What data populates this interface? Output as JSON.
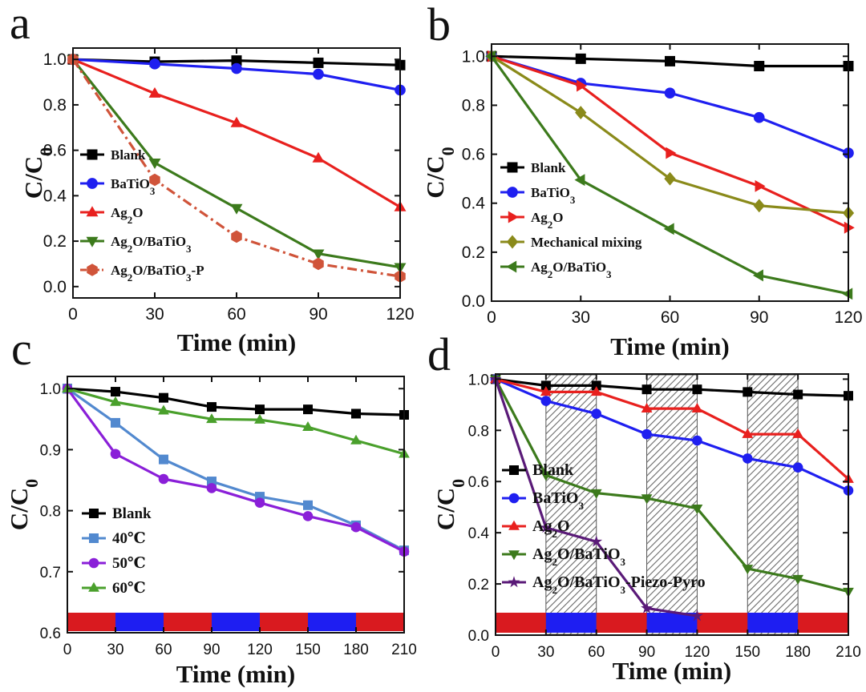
{
  "chart_data": [
    {
      "panel": "a",
      "type": "line",
      "xlabel": "Time (min)",
      "ylabel": "C/C0",
      "xlim": [
        0,
        120
      ],
      "ylim": [
        -0.05,
        1.05
      ],
      "xticks": [
        "0",
        "30",
        "60",
        "90",
        "120"
      ],
      "yticks": [
        "0.0",
        "0.2",
        "0.4",
        "0.6",
        "0.8",
        "1.0"
      ],
      "x": [
        0,
        30,
        60,
        90,
        120
      ],
      "series": [
        {
          "name": "Blank",
          "legend": [
            "Blank",
            ""
          ],
          "color": "#000000",
          "marker": "square",
          "values": [
            1.0,
            0.99,
            0.995,
            0.985,
            0.975
          ]
        },
        {
          "name": "BaTiO3",
          "legend": [
            "BaTiO",
            "3"
          ],
          "color": "#1f1ff0",
          "marker": "circle",
          "values": [
            1.0,
            0.98,
            0.96,
            0.935,
            0.865
          ]
        },
        {
          "name": "Ag2O",
          "legend": [
            "Ag",
            "2",
            "O"
          ],
          "color": "#e8201e",
          "marker": "triangle-up",
          "values": [
            1.0,
            0.85,
            0.72,
            0.565,
            0.35
          ]
        },
        {
          "name": "Ag2O/BaTiO3",
          "legend": [
            "Ag",
            "2",
            "O/BaTiO",
            "3"
          ],
          "color": "#3c7a1c",
          "marker": "triangle-down",
          "values": [
            1.0,
            0.545,
            0.345,
            0.145,
            0.085
          ]
        },
        {
          "name": "Ag2O/BaTiO3-P",
          "legend": [
            "Ag",
            "2",
            "O/BaTiO",
            "3",
            "-P"
          ],
          "color": "#d0543a",
          "marker": "hexagon",
          "dash": "dashdot",
          "values": [
            1.0,
            0.47,
            0.22,
            0.1,
            0.045
          ]
        }
      ]
    },
    {
      "panel": "b",
      "type": "line",
      "xlabel": "Time (min)",
      "ylabel": "C/C0",
      "xlim": [
        0,
        120
      ],
      "ylim": [
        0,
        1.05
      ],
      "xticks": [
        "0",
        "30",
        "60",
        "90",
        "120"
      ],
      "yticks": [
        "0.0",
        "0.2",
        "0.4",
        "0.6",
        "0.8",
        "1.0"
      ],
      "x": [
        0,
        30,
        60,
        90,
        120
      ],
      "series": [
        {
          "name": "Blank",
          "legend": [
            "Blank",
            ""
          ],
          "color": "#000000",
          "marker": "square",
          "values": [
            1.0,
            0.99,
            0.98,
            0.96,
            0.96
          ]
        },
        {
          "name": "BaTiO3",
          "legend": [
            "BaTiO",
            "3"
          ],
          "color": "#1f1ff0",
          "marker": "circle",
          "values": [
            1.0,
            0.89,
            0.85,
            0.75,
            0.605
          ]
        },
        {
          "name": "Ag2O",
          "legend": [
            "Ag",
            "2",
            "O"
          ],
          "color": "#e8201e",
          "marker": "triangle-right",
          "values": [
            1.0,
            0.88,
            0.605,
            0.47,
            0.3
          ]
        },
        {
          "name": "Mechanical mixing",
          "legend": [
            "Mechanical mixing",
            ""
          ],
          "color": "#8a8a1a",
          "marker": "diamond",
          "values": [
            1.0,
            0.77,
            0.5,
            0.39,
            0.36
          ]
        },
        {
          "name": "Ag2O/BaTiO3",
          "legend": [
            "Ag",
            "2",
            "O/BaTiO",
            "3"
          ],
          "color": "#3c7a1c",
          "marker": "triangle-left",
          "values": [
            1.0,
            0.495,
            0.295,
            0.105,
            0.03
          ]
        }
      ]
    },
    {
      "panel": "c",
      "type": "line",
      "xlabel": "Time (min)",
      "ylabel": "C/C0",
      "xlim": [
        0,
        210
      ],
      "ylim": [
        0.6,
        1.02
      ],
      "xticks": [
        "0",
        "30",
        "60",
        "90",
        "120",
        "150",
        "180",
        "210"
      ],
      "yticks": [
        "0.6",
        "0.7",
        "0.8",
        "0.9",
        "1.0"
      ],
      "x": [
        0,
        30,
        60,
        90,
        120,
        150,
        180,
        210
      ],
      "light_bar": [
        "red",
        "blue",
        "red",
        "blue",
        "red",
        "blue",
        "red"
      ],
      "series": [
        {
          "name": "Blank",
          "legend": [
            "Blank",
            ""
          ],
          "color": "#000000",
          "marker": "square",
          "values": [
            1.0,
            0.995,
            0.985,
            0.97,
            0.966,
            0.966,
            0.959,
            0.957
          ]
        },
        {
          "name": "40℃",
          "legend": [
            "40℃",
            ""
          ],
          "color": "#5289cf",
          "marker": "square",
          "values": [
            1.0,
            0.944,
            0.884,
            0.848,
            0.823,
            0.809,
            0.776,
            0.735
          ]
        },
        {
          "name": "50℃",
          "legend": [
            "50℃",
            ""
          ],
          "color": "#8a1fd8",
          "marker": "circle",
          "values": [
            1.0,
            0.893,
            0.852,
            0.837,
            0.813,
            0.791,
            0.773,
            0.733
          ]
        },
        {
          "name": "60℃",
          "legend": [
            "60℃",
            ""
          ],
          "color": "#4aa02c",
          "marker": "triangle-up",
          "values": [
            1.0,
            0.978,
            0.964,
            0.95,
            0.949,
            0.937,
            0.915,
            0.893
          ]
        }
      ]
    },
    {
      "panel": "d",
      "type": "line",
      "xlabel": "Time (min)",
      "ylabel": "C/C0",
      "xlim": [
        0,
        210
      ],
      "ylim": [
        0,
        1.02
      ],
      "xticks": [
        "0",
        "30",
        "60",
        "90",
        "120",
        "150",
        "180",
        "210"
      ],
      "yticks": [
        "0.0",
        "0.2",
        "0.4",
        "0.6",
        "0.8",
        "1.0"
      ],
      "x": [
        0,
        30,
        60,
        90,
        120,
        150,
        180,
        210
      ],
      "hatched_intervals": [
        [
          30,
          60
        ],
        [
          90,
          120
        ],
        [
          150,
          180
        ]
      ],
      "light_bar": [
        "red",
        "blue",
        "red",
        "blue",
        "red",
        "blue",
        "red"
      ],
      "series": [
        {
          "name": "Blank",
          "legend": [
            "Blank",
            ""
          ],
          "color": "#000000",
          "marker": "square",
          "values": [
            1.0,
            0.975,
            0.975,
            0.96,
            0.96,
            0.95,
            0.94,
            0.935
          ]
        },
        {
          "name": "BaTiO3",
          "legend": [
            "BaTiO",
            "3"
          ],
          "color": "#1f1ff0",
          "marker": "circle",
          "values": [
            1.0,
            0.915,
            0.865,
            0.785,
            0.76,
            0.69,
            0.655,
            0.565
          ]
        },
        {
          "name": "Ag2O",
          "legend": [
            "Ag",
            "2",
            "O"
          ],
          "color": "#e8201e",
          "marker": "triangle-up",
          "values": [
            1.0,
            0.95,
            0.95,
            0.885,
            0.885,
            0.785,
            0.785,
            0.61
          ]
        },
        {
          "name": "Ag2O/BaTiO3",
          "legend": [
            "Ag",
            "2",
            "O/BaTiO",
            "3"
          ],
          "color": "#3c7a1c",
          "marker": "triangle-down",
          "values": [
            1.0,
            0.625,
            0.555,
            0.535,
            0.495,
            0.26,
            0.22,
            0.17
          ]
        },
        {
          "name": "Ag2O/BaTiO3-Piezo-Pyro",
          "legend": [
            "Ag",
            "2",
            "O/BaTiO",
            "3",
            "-Piezo-Pyro"
          ],
          "color": "#5a1a78",
          "marker": "star",
          "x": [
            0,
            30,
            60,
            90,
            120
          ],
          "values": [
            1.0,
            0.42,
            0.365,
            0.105,
            0.075
          ]
        }
      ]
    }
  ]
}
